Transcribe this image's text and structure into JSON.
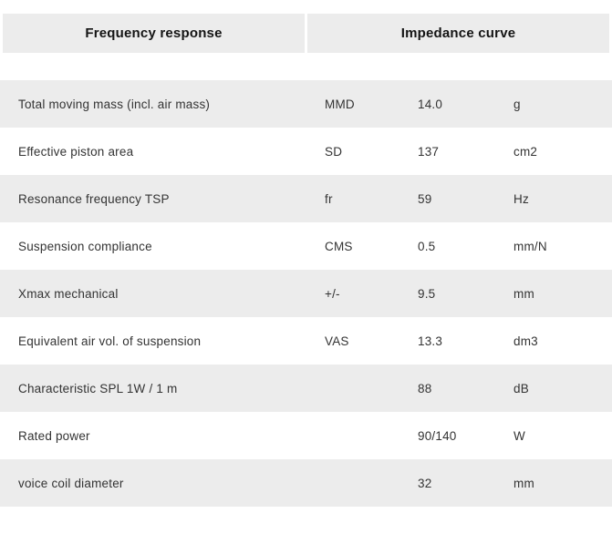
{
  "tabs": [
    {
      "label": "Frequency response"
    },
    {
      "label": "Impedance curve"
    }
  ],
  "table": {
    "rows": [
      {
        "label": "Total moving mass (incl. air mass)",
        "symbol": "MMD",
        "value": "14.0",
        "unit": "g"
      },
      {
        "label": "Effective piston area",
        "symbol": "SD",
        "value": "137",
        "unit": "cm2"
      },
      {
        "label": "Resonance frequency TSP",
        "symbol": "fr",
        "value": "59",
        "unit": "Hz"
      },
      {
        "label": "Suspension compliance",
        "symbol": "CMS",
        "value": "0.5",
        "unit": "mm/N"
      },
      {
        "label": "Xmax mechanical",
        "symbol": "+/-",
        "value": "9.5",
        "unit": "mm"
      },
      {
        "label": "Equivalent air vol. of suspension",
        "symbol": "VAS",
        "value": "13.3",
        "unit": "dm3"
      },
      {
        "label": "Characteristic SPL 1W / 1 m",
        "symbol": "",
        "value": "88",
        "unit": "dB"
      },
      {
        "label": "Rated power",
        "symbol": "",
        "value": "90/140",
        "unit": "W"
      },
      {
        "label": "voice coil diameter",
        "symbol": "",
        "value": "32",
        "unit": "mm"
      }
    ]
  },
  "colors": {
    "row_alt_bg": "#ececec",
    "tab_bg": "#ececec",
    "tab_text": "#141414",
    "row_text": "#333333",
    "page_bg": "#ffffff"
  }
}
